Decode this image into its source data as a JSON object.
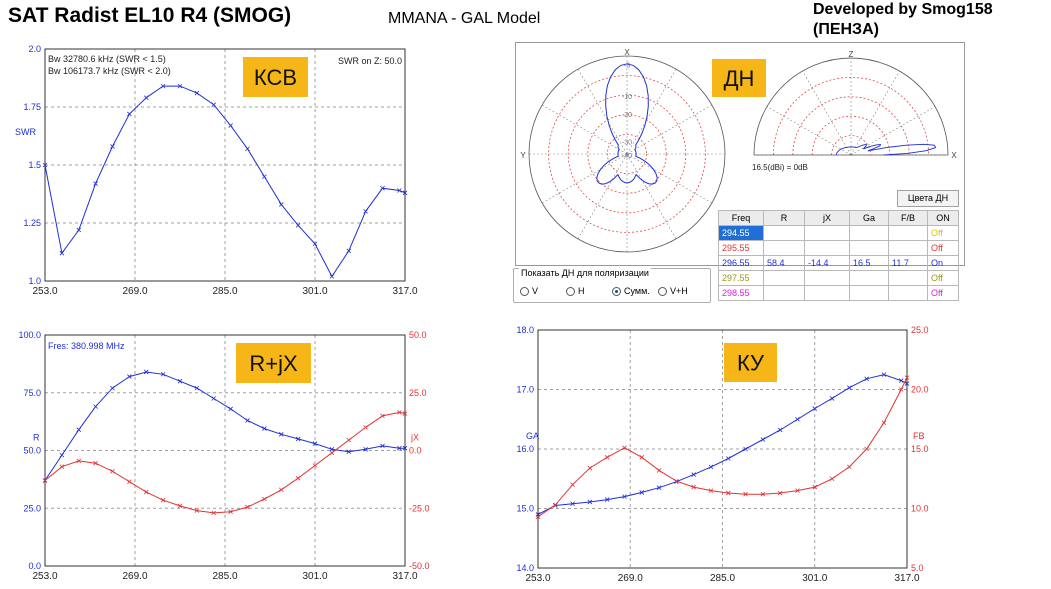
{
  "header": {
    "title": "SAT Radist EL10 R4 (SMOG)",
    "subtitle": "MMANA - GAL Model",
    "developer_line1": "Developed by Smog158",
    "developer_line2": "(ПЕНЗА)"
  },
  "colors": {
    "blue": "#1f2fd6",
    "red": "#e23333",
    "badge": "#f6b618",
    "grid": "#a0a0a0"
  },
  "chart_data": [
    {
      "id": "swr",
      "type": "line",
      "title": "",
      "badge": "КСВ",
      "xlabel": "",
      "ylabel": "SWR",
      "xlim": [
        253,
        317
      ],
      "ylim": [
        1.0,
        2.0
      ],
      "xticks": [
        "253.0",
        "269.0",
        "285.0",
        "301.0",
        "317.0"
      ],
      "yticks": [
        "1.0",
        "1.25",
        "1.5",
        "1.75",
        "2.0"
      ],
      "annotations": [
        "Bw 32780.6 kHz (SWR < 1.5)",
        "Bw 106173.7 kHz (SWR < 2.0)",
        "SWR on Z: 50.0"
      ],
      "series": [
        {
          "color": "blue",
          "x": [
            253,
            256,
            259,
            262,
            265,
            268,
            271,
            274,
            277,
            280,
            283,
            286,
            289,
            292,
            295,
            298,
            301,
            304,
            307,
            310,
            313,
            316,
            317
          ],
          "y": [
            1.5,
            1.12,
            1.22,
            1.42,
            1.58,
            1.72,
            1.79,
            1.84,
            1.84,
            1.81,
            1.76,
            1.67,
            1.57,
            1.45,
            1.33,
            1.24,
            1.16,
            1.02,
            1.13,
            1.3,
            1.4,
            1.39,
            1.38
          ]
        }
      ]
    },
    {
      "id": "rjx",
      "type": "line",
      "badge": "R+jX",
      "annotation": "Fres: 380.998 MHz",
      "ylabel_left": "R",
      "ylabel_right": "jX",
      "xlim": [
        253,
        317
      ],
      "ylim_left": [
        0,
        100
      ],
      "ylim_right": [
        -50,
        50
      ],
      "xticks": [
        "253.0",
        "269.0",
        "285.0",
        "301.0",
        "317.0"
      ],
      "yticks_left": [
        "0.0",
        "25.0",
        "50.0",
        "75.0",
        "100.0"
      ],
      "yticks_right": [
        "-50.0",
        "-25.0",
        "0.0",
        "25.0",
        "50.0"
      ],
      "series": [
        {
          "color": "blue",
          "axis": "left",
          "x": [
            253,
            256,
            259,
            262,
            265,
            268,
            271,
            274,
            277,
            280,
            283,
            286,
            289,
            292,
            295,
            298,
            301,
            304,
            307,
            310,
            313,
            316,
            317
          ],
          "y": [
            37,
            48,
            59,
            69,
            77,
            82,
            84,
            83,
            80,
            77,
            72.5,
            68,
            63,
            59.5,
            57,
            55,
            53,
            50.5,
            49.5,
            50.5,
            52,
            51,
            51
          ]
        },
        {
          "color": "red",
          "axis": "right",
          "x": [
            253,
            256,
            259,
            262,
            265,
            268,
            271,
            274,
            277,
            280,
            283,
            286,
            289,
            292,
            295,
            298,
            301,
            304,
            307,
            310,
            313,
            316,
            317
          ],
          "y": [
            -13,
            -7,
            -4.5,
            -5.5,
            -9,
            -13.5,
            -18,
            -21.5,
            -24,
            -26,
            -27,
            -26.5,
            -24.5,
            -21,
            -17,
            -12,
            -6.5,
            -1,
            4.5,
            10,
            15,
            16.5,
            16
          ]
        }
      ]
    },
    {
      "id": "gain",
      "type": "line",
      "badge": "КУ",
      "ylabel_left": "GA",
      "ylabel_right": "FB",
      "xlim": [
        253,
        317
      ],
      "ylim_left": [
        14.0,
        18.0
      ],
      "ylim_right": [
        5.0,
        25.0
      ],
      "xticks": [
        "253.0",
        "269.0",
        "285.0",
        "301.0",
        "317.0"
      ],
      "yticks_left": [
        "14.0",
        "15.0",
        "16.0",
        "17.0",
        "18.0"
      ],
      "yticks_right": [
        "5.0",
        "10.0",
        "15.0",
        "20.0",
        "25.0"
      ],
      "series": [
        {
          "color": "blue",
          "axis": "left",
          "x": [
            253,
            256,
            259,
            262,
            265,
            268,
            271,
            274,
            277,
            280,
            283,
            286,
            289,
            292,
            295,
            298,
            301,
            304,
            307,
            310,
            313,
            316,
            317
          ],
          "y": [
            14.9,
            15.05,
            15.08,
            15.11,
            15.15,
            15.2,
            15.27,
            15.35,
            15.45,
            15.57,
            15.7,
            15.84,
            16.0,
            16.16,
            16.32,
            16.5,
            16.68,
            16.85,
            17.03,
            17.18,
            17.25,
            17.15,
            17.1
          ]
        },
        {
          "color": "red",
          "axis": "right",
          "x": [
            253,
            256,
            259,
            262,
            265,
            268,
            271,
            274,
            277,
            280,
            283,
            286,
            289,
            292,
            295,
            298,
            301,
            304,
            307,
            310,
            313,
            316,
            317
          ],
          "y": [
            9.3,
            10.3,
            12.0,
            13.4,
            14.3,
            15.1,
            14.3,
            13.2,
            12.3,
            11.8,
            11.5,
            11.3,
            11.2,
            11.2,
            11.3,
            11.5,
            11.8,
            12.5,
            13.5,
            15.0,
            17.2,
            20.0,
            21.0
          ]
        }
      ]
    },
    {
      "id": "pattern",
      "type": "polar",
      "badge": "ДН",
      "ring_labels": [
        "-3",
        "-10",
        "-20",
        "-30",
        "-40"
      ],
      "elevation_label": "16.5(dBi) = 0dB",
      "axis_labels": {
        "top": "X",
        "left": "Y",
        "right": "X",
        "vtop": "Z"
      }
    }
  ],
  "polar_table": {
    "headers": [
      "Freq",
      "R",
      "jX",
      "Ga",
      "F/B",
      "ON"
    ],
    "rows": [
      {
        "freq": "294.55",
        "r": "",
        "jx": "",
        "ga": "",
        "fb": "",
        "on": "Off",
        "color": "#e0c000"
      },
      {
        "freq": "295.55",
        "r": "",
        "jx": "",
        "ga": "",
        "fb": "",
        "on": "Off",
        "color": "#e23333"
      },
      {
        "freq": "296.55",
        "r": "58.4",
        "jx": "-14.4",
        "ga": "16.5",
        "fb": "11.7",
        "on": "On",
        "color": "#1f2fd6"
      },
      {
        "freq": "297.55",
        "r": "",
        "jx": "",
        "ga": "",
        "fb": "",
        "on": "Off",
        "color": "#9a9a10"
      },
      {
        "freq": "298.55",
        "r": "",
        "jx": "",
        "ga": "",
        "fb": "",
        "on": "Off",
        "color": "#e020e0"
      }
    ]
  },
  "polarization": {
    "title": "Показать ДН для поляризации",
    "options": [
      "V",
      "H",
      "Сумм.",
      "V+H"
    ],
    "selected": "Сумм.",
    "colors_button": "Цвета ДН"
  }
}
